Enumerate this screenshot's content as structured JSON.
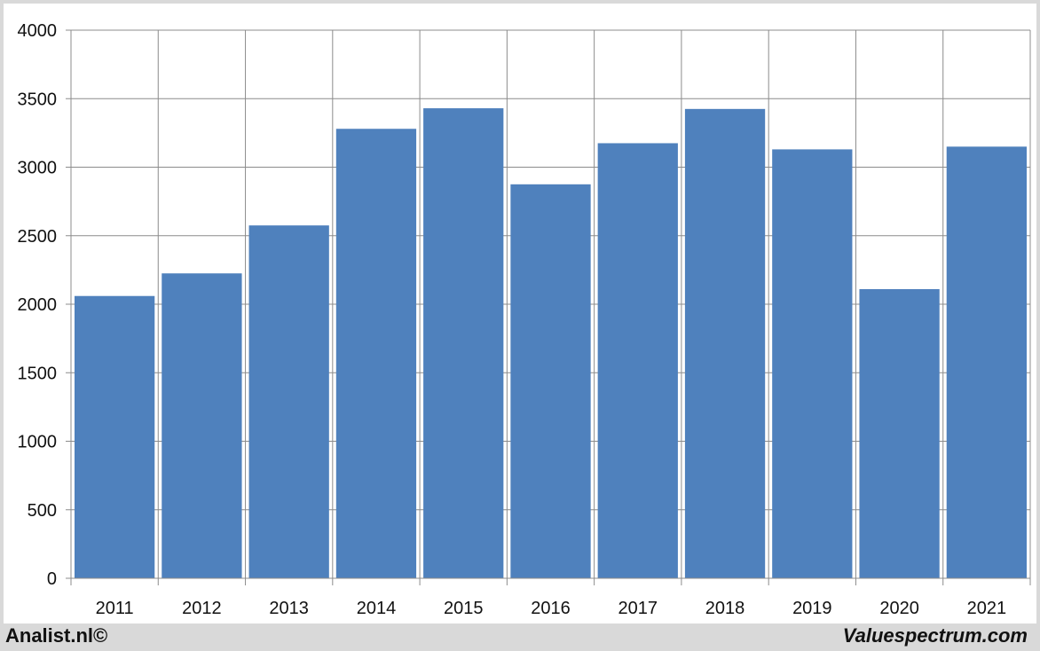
{
  "chart_data": {
    "type": "bar",
    "categories": [
      "2011",
      "2012",
      "2013",
      "2014",
      "2015",
      "2016",
      "2017",
      "2018",
      "2019",
      "2020",
      "2021"
    ],
    "values": [
      2060,
      2225,
      2575,
      3280,
      3430,
      2875,
      3175,
      3425,
      3130,
      2110,
      3150
    ],
    "ylim": [
      0,
      4000
    ],
    "yticks": [
      "0",
      "500",
      "1000",
      "1500",
      "2000",
      "2500",
      "3000",
      "3500",
      "4000"
    ],
    "ytick_values": [
      0,
      500,
      1000,
      1500,
      2000,
      2500,
      3000,
      3500,
      4000
    ],
    "grid": true,
    "bar_color": "#4f81bd"
  },
  "footer": {
    "left": "Analist.nl©",
    "right": "Valuespectrum.com"
  }
}
